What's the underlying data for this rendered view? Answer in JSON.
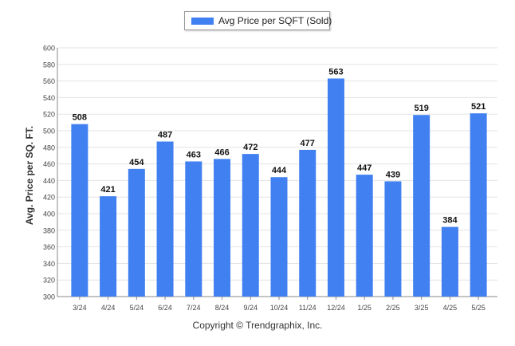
{
  "chart_data": {
    "type": "bar",
    "categories": [
      "3/24",
      "4/24",
      "5/24",
      "6/24",
      "7/24",
      "8/24",
      "9/24",
      "10/24",
      "11/24",
      "12/24",
      "1/25",
      "2/25",
      "3/25",
      "4/25",
      "5/25"
    ],
    "series": [
      {
        "name": "Avg Price per SQFT (Sold)",
        "values": [
          508,
          421,
          454,
          487,
          463,
          466,
          472,
          444,
          477,
          563,
          447,
          439,
          519,
          384,
          521
        ]
      }
    ],
    "ylabel": "Avg. Price per SQ. FT.",
    "xlabel": "",
    "ylim": [
      300,
      600
    ],
    "ytick_step": 20,
    "grid": true,
    "legend_position": "top-center",
    "data_labels": true,
    "colors": {
      "bar": "#4180f0",
      "grid": "#e3e3e3",
      "axis": "#888888"
    }
  },
  "footer": {
    "copyright": "Copyright © Trendgraphix, Inc."
  }
}
